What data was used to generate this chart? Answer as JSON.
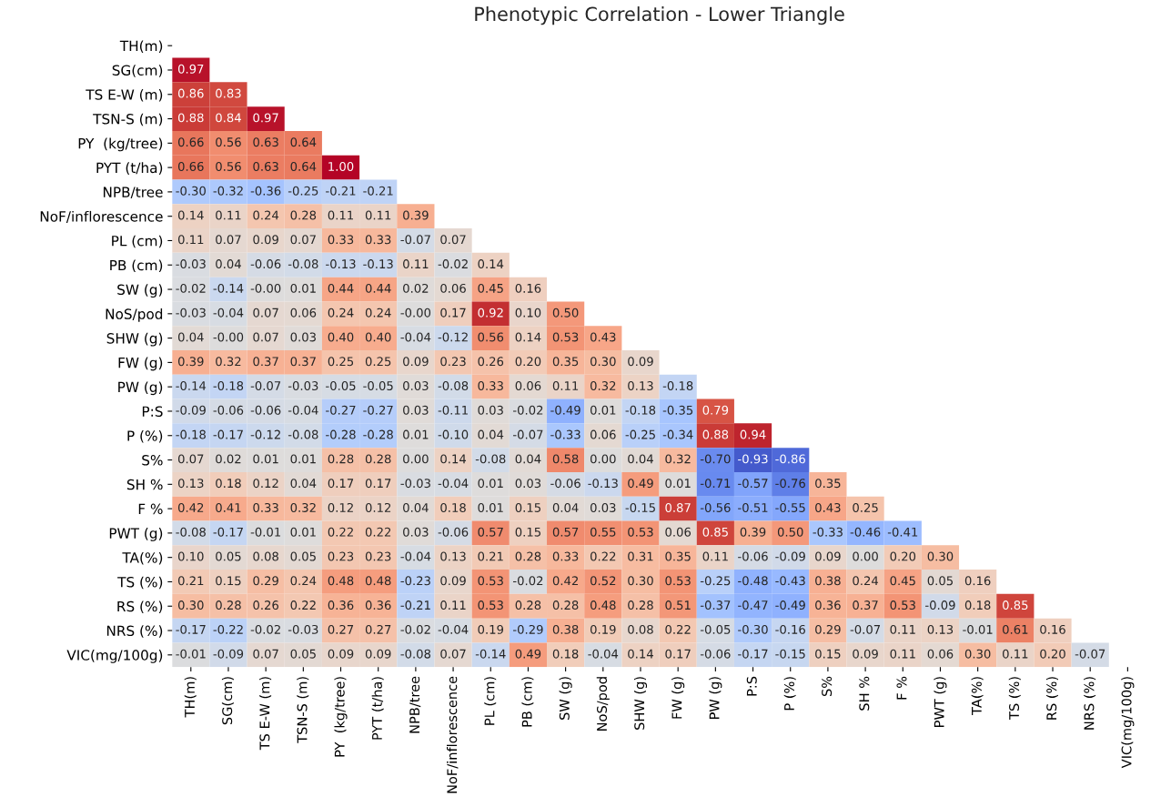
{
  "chart_data": {
    "type": "heatmap",
    "title": "Phenotypic Correlation - Lower Triangle",
    "grid": false,
    "data_labels": true,
    "categories": [
      "TH(m)",
      "SG(cm)",
      "TS E-W (m)",
      "TSN-S (m)",
      "PY  (kg/tree)",
      "PYT (t/ha)",
      "NPB/tree",
      "NoF/inflorescence",
      "PL (cm)",
      "PB (cm)",
      "SW (g)",
      "NoS/pod",
      "SHW (g)",
      "FW (g)",
      "PW (g)",
      "P:S",
      "P (%)",
      "S%",
      "SH %",
      "F %",
      "PWT (g)",
      "TA(%)",
      "TS (%)",
      "RS (%)",
      "NRS (%)",
      "VIC(mg/100g)"
    ],
    "y_categories": [
      "TH(m)",
      "SG(cm)",
      "TS E-W (m)",
      "TSN-S (m)",
      "PY  (kg/tree)",
      "PYT (t/ha)",
      "NPB/tree",
      "NoF/inflorescence",
      "PL (cm)",
      "PB (cm)",
      "SW (g)",
      "NoS/pod",
      "SHW (g)",
      "FW (g)",
      "PW (g)",
      "P:S",
      "P (%)",
      "S%",
      "SH %",
      "F %",
      "PWT (g)",
      "TA(%)",
      "TS (%)",
      "RS (%)",
      "NRS (%)",
      "VIC(mg/100g)"
    ],
    "cells": [
      [
        null,
        null,
        null,
        null,
        null,
        null,
        null,
        null,
        null,
        null,
        null,
        null,
        null,
        null,
        null,
        null,
        null,
        null,
        null,
        null,
        null,
        null,
        null,
        null,
        null,
        null
      ],
      [
        0.97,
        null,
        null,
        null,
        null,
        null,
        null,
        null,
        null,
        null,
        null,
        null,
        null,
        null,
        null,
        null,
        null,
        null,
        null,
        null,
        null,
        null,
        null,
        null,
        null,
        null
      ],
      [
        0.86,
        0.83,
        null,
        null,
        null,
        null,
        null,
        null,
        null,
        null,
        null,
        null,
        null,
        null,
        null,
        null,
        null,
        null,
        null,
        null,
        null,
        null,
        null,
        null,
        null,
        null
      ],
      [
        0.88,
        0.84,
        0.97,
        null,
        null,
        null,
        null,
        null,
        null,
        null,
        null,
        null,
        null,
        null,
        null,
        null,
        null,
        null,
        null,
        null,
        null,
        null,
        null,
        null,
        null,
        null
      ],
      [
        0.66,
        0.56,
        0.63,
        0.64,
        null,
        null,
        null,
        null,
        null,
        null,
        null,
        null,
        null,
        null,
        null,
        null,
        null,
        null,
        null,
        null,
        null,
        null,
        null,
        null,
        null,
        null
      ],
      [
        0.66,
        0.56,
        0.63,
        0.64,
        1.0,
        null,
        null,
        null,
        null,
        null,
        null,
        null,
        null,
        null,
        null,
        null,
        null,
        null,
        null,
        null,
        null,
        null,
        null,
        null,
        null,
        null
      ],
      [
        -0.3,
        -0.32,
        -0.36,
        -0.25,
        -0.21,
        -0.21,
        null,
        null,
        null,
        null,
        null,
        null,
        null,
        null,
        null,
        null,
        null,
        null,
        null,
        null,
        null,
        null,
        null,
        null,
        null,
        null
      ],
      [
        0.14,
        0.11,
        0.24,
        0.28,
        0.11,
        0.11,
        0.39,
        null,
        null,
        null,
        null,
        null,
        null,
        null,
        null,
        null,
        null,
        null,
        null,
        null,
        null,
        null,
        null,
        null,
        null,
        null
      ],
      [
        0.11,
        0.07,
        0.09,
        0.07,
        0.33,
        0.33,
        -0.07,
        0.07,
        null,
        null,
        null,
        null,
        null,
        null,
        null,
        null,
        null,
        null,
        null,
        null,
        null,
        null,
        null,
        null,
        null,
        null
      ],
      [
        -0.03,
        0.04,
        -0.06,
        -0.08,
        -0.13,
        -0.13,
        0.11,
        -0.02,
        0.14,
        null,
        null,
        null,
        null,
        null,
        null,
        null,
        null,
        null,
        null,
        null,
        null,
        null,
        null,
        null,
        null,
        null
      ],
      [
        -0.02,
        -0.14,
        -0.0,
        0.01,
        0.44,
        0.44,
        0.02,
        0.06,
        0.45,
        0.16,
        null,
        null,
        null,
        null,
        null,
        null,
        null,
        null,
        null,
        null,
        null,
        null,
        null,
        null,
        null,
        null
      ],
      [
        -0.03,
        -0.04,
        0.07,
        0.06,
        0.24,
        0.24,
        -0.0,
        0.17,
        0.92,
        0.1,
        0.5,
        null,
        null,
        null,
        null,
        null,
        null,
        null,
        null,
        null,
        null,
        null,
        null,
        null,
        null,
        null
      ],
      [
        0.04,
        -0.0,
        0.07,
        0.03,
        0.4,
        0.4,
        -0.04,
        -0.12,
        0.56,
        0.14,
        0.53,
        0.43,
        null,
        null,
        null,
        null,
        null,
        null,
        null,
        null,
        null,
        null,
        null,
        null,
        null,
        null
      ],
      [
        0.39,
        0.32,
        0.37,
        0.37,
        0.25,
        0.25,
        0.09,
        0.23,
        0.26,
        0.2,
        0.35,
        0.3,
        0.09,
        null,
        null,
        null,
        null,
        null,
        null,
        null,
        null,
        null,
        null,
        null,
        null,
        null
      ],
      [
        -0.14,
        -0.18,
        -0.07,
        -0.03,
        -0.05,
        -0.05,
        0.03,
        -0.08,
        0.33,
        0.06,
        0.11,
        0.32,
        0.13,
        -0.18,
        null,
        null,
        null,
        null,
        null,
        null,
        null,
        null,
        null,
        null,
        null,
        null
      ],
      [
        -0.09,
        -0.06,
        -0.06,
        -0.04,
        -0.27,
        -0.27,
        0.03,
        -0.11,
        0.03,
        -0.02,
        -0.49,
        0.01,
        -0.18,
        -0.35,
        0.79,
        null,
        null,
        null,
        null,
        null,
        null,
        null,
        null,
        null,
        null,
        null
      ],
      [
        -0.18,
        -0.17,
        -0.12,
        -0.08,
        -0.28,
        -0.28,
        0.01,
        -0.1,
        0.04,
        -0.07,
        -0.33,
        0.06,
        -0.25,
        -0.34,
        0.88,
        0.94,
        null,
        null,
        null,
        null,
        null,
        null,
        null,
        null,
        null,
        null
      ],
      [
        0.07,
        0.02,
        0.01,
        0.01,
        0.28,
        0.28,
        0.0,
        0.14,
        -0.08,
        0.04,
        0.58,
        0.0,
        0.04,
        0.32,
        -0.7,
        -0.93,
        -0.86,
        null,
        null,
        null,
        null,
        null,
        null,
        null,
        null,
        null
      ],
      [
        0.13,
        0.18,
        0.12,
        0.04,
        0.17,
        0.17,
        -0.03,
        -0.04,
        0.01,
        0.03,
        -0.06,
        -0.13,
        0.49,
        0.01,
        -0.71,
        -0.57,
        -0.76,
        0.35,
        null,
        null,
        null,
        null,
        null,
        null,
        null,
        null
      ],
      [
        0.42,
        0.41,
        0.33,
        0.32,
        0.12,
        0.12,
        0.04,
        0.18,
        0.01,
        0.15,
        0.04,
        0.03,
        -0.15,
        0.87,
        -0.56,
        -0.51,
        -0.55,
        0.43,
        0.25,
        null,
        null,
        null,
        null,
        null,
        null,
        null
      ],
      [
        -0.08,
        -0.17,
        -0.01,
        0.01,
        0.22,
        0.22,
        0.03,
        -0.06,
        0.57,
        0.15,
        0.57,
        0.55,
        0.53,
        0.06,
        0.85,
        0.39,
        0.5,
        -0.33,
        -0.46,
        -0.41,
        null,
        null,
        null,
        null,
        null,
        null
      ],
      [
        0.1,
        0.05,
        0.08,
        0.05,
        0.23,
        0.23,
        -0.04,
        0.13,
        0.21,
        0.28,
        0.33,
        0.22,
        0.31,
        0.35,
        0.11,
        -0.06,
        -0.09,
        0.09,
        0.0,
        0.2,
        0.3,
        null,
        null,
        null,
        null,
        null
      ],
      [
        0.21,
        0.15,
        0.29,
        0.24,
        0.48,
        0.48,
        -0.23,
        0.09,
        0.53,
        -0.02,
        0.42,
        0.52,
        0.3,
        0.53,
        -0.25,
        -0.48,
        -0.43,
        0.38,
        0.24,
        0.45,
        0.05,
        0.16,
        null,
        null,
        null,
        null
      ],
      [
        0.3,
        0.28,
        0.26,
        0.22,
        0.36,
        0.36,
        -0.21,
        0.11,
        0.53,
        0.28,
        0.28,
        0.48,
        0.28,
        0.51,
        -0.37,
        -0.47,
        -0.49,
        0.36,
        0.37,
        0.53,
        -0.09,
        0.18,
        0.85,
        null,
        null,
        null
      ],
      [
        -0.17,
        -0.22,
        -0.02,
        -0.03,
        0.27,
        0.27,
        -0.02,
        -0.04,
        0.19,
        -0.29,
        0.38,
        0.19,
        0.08,
        0.22,
        -0.05,
        -0.3,
        -0.16,
        0.29,
        -0.07,
        0.11,
        0.13,
        -0.01,
        0.61,
        0.16,
        null,
        null
      ],
      [
        -0.01,
        -0.09,
        0.07,
        0.05,
        0.09,
        0.09,
        -0.08,
        0.07,
        -0.14,
        0.49,
        0.18,
        -0.04,
        0.14,
        0.17,
        -0.06,
        -0.17,
        -0.15,
        0.15,
        0.09,
        0.11,
        0.06,
        0.3,
        0.11,
        0.2,
        -0.07,
        null
      ]
    ],
    "cell_labels": [
      [
        null,
        null,
        null,
        null,
        null,
        null,
        null,
        null,
        null,
        null,
        null,
        null,
        null,
        null,
        null,
        null,
        null,
        null,
        null,
        null,
        null,
        null,
        null,
        null,
        null,
        null
      ],
      [
        "0.97",
        null,
        null,
        null,
        null,
        null,
        null,
        null,
        null,
        null,
        null,
        null,
        null,
        null,
        null,
        null,
        null,
        null,
        null,
        null,
        null,
        null,
        null,
        null,
        null,
        null
      ],
      [
        "0.86",
        "0.83",
        null,
        null,
        null,
        null,
        null,
        null,
        null,
        null,
        null,
        null,
        null,
        null,
        null,
        null,
        null,
        null,
        null,
        null,
        null,
        null,
        null,
        null,
        null,
        null
      ],
      [
        "0.88",
        "0.84",
        "0.97",
        null,
        null,
        null,
        null,
        null,
        null,
        null,
        null,
        null,
        null,
        null,
        null,
        null,
        null,
        null,
        null,
        null,
        null,
        null,
        null,
        null,
        null,
        null
      ],
      [
        "0.66",
        "0.56",
        "0.63",
        "0.64",
        null,
        null,
        null,
        null,
        null,
        null,
        null,
        null,
        null,
        null,
        null,
        null,
        null,
        null,
        null,
        null,
        null,
        null,
        null,
        null,
        null,
        null
      ],
      [
        "0.66",
        "0.56",
        "0.63",
        "0.64",
        "1.00",
        null,
        null,
        null,
        null,
        null,
        null,
        null,
        null,
        null,
        null,
        null,
        null,
        null,
        null,
        null,
        null,
        null,
        null,
        null,
        null,
        null
      ],
      [
        "-0.30",
        "-0.32",
        "-0.36",
        "-0.25",
        "-0.21",
        "-0.21",
        null,
        null,
        null,
        null,
        null,
        null,
        null,
        null,
        null,
        null,
        null,
        null,
        null,
        null,
        null,
        null,
        null,
        null,
        null,
        null
      ],
      [
        "0.14",
        "0.11",
        "0.24",
        "0.28",
        "0.11",
        "0.11",
        "0.39",
        null,
        null,
        null,
        null,
        null,
        null,
        null,
        null,
        null,
        null,
        null,
        null,
        null,
        null,
        null,
        null,
        null,
        null,
        null
      ],
      [
        "0.11",
        "0.07",
        "0.09",
        "0.07",
        "0.33",
        "0.33",
        "-0.07",
        "0.07",
        null,
        null,
        null,
        null,
        null,
        null,
        null,
        null,
        null,
        null,
        null,
        null,
        null,
        null,
        null,
        null,
        null,
        null
      ],
      [
        "-0.03",
        "0.04",
        "-0.06",
        "-0.08",
        "-0.13",
        "-0.13",
        "0.11",
        "-0.02",
        "0.14",
        null,
        null,
        null,
        null,
        null,
        null,
        null,
        null,
        null,
        null,
        null,
        null,
        null,
        null,
        null,
        null,
        null
      ],
      [
        "-0.02",
        "-0.14",
        "-0.00",
        "0.01",
        "0.44",
        "0.44",
        "0.02",
        "0.06",
        "0.45",
        "0.16",
        null,
        null,
        null,
        null,
        null,
        null,
        null,
        null,
        null,
        null,
        null,
        null,
        null,
        null,
        null,
        null
      ],
      [
        "-0.03",
        "-0.04",
        "0.07",
        "0.06",
        "0.24",
        "0.24",
        "-0.00",
        "0.17",
        "0.92",
        "0.10",
        "0.50",
        null,
        null,
        null,
        null,
        null,
        null,
        null,
        null,
        null,
        null,
        null,
        null,
        null,
        null,
        null
      ],
      [
        "0.04",
        "-0.00",
        "0.07",
        "0.03",
        "0.40",
        "0.40",
        "-0.04",
        "-0.12",
        "0.56",
        "0.14",
        "0.53",
        "0.43",
        null,
        null,
        null,
        null,
        null,
        null,
        null,
        null,
        null,
        null,
        null,
        null,
        null,
        null
      ],
      [
        "0.39",
        "0.32",
        "0.37",
        "0.37",
        "0.25",
        "0.25",
        "0.09",
        "0.23",
        "0.26",
        "0.20",
        "0.35",
        "0.30",
        "0.09",
        null,
        null,
        null,
        null,
        null,
        null,
        null,
        null,
        null,
        null,
        null,
        null,
        null
      ],
      [
        "-0.14",
        "-0.18",
        "-0.07",
        "-0.03",
        "-0.05",
        "-0.05",
        "0.03",
        "-0.08",
        "0.33",
        "0.06",
        "0.11",
        "0.32",
        "0.13",
        "-0.18",
        null,
        null,
        null,
        null,
        null,
        null,
        null,
        null,
        null,
        null,
        null,
        null
      ],
      [
        "-0.09",
        "-0.06",
        "-0.06",
        "-0.04",
        "-0.27",
        "-0.27",
        "0.03",
        "-0.11",
        "0.03",
        "-0.02",
        "-0.49",
        "0.01",
        "-0.18",
        "-0.35",
        "0.79",
        null,
        null,
        null,
        null,
        null,
        null,
        null,
        null,
        null,
        null,
        null
      ],
      [
        "-0.18",
        "-0.17",
        "-0.12",
        "-0.08",
        "-0.28",
        "-0.28",
        "0.01",
        "-0.10",
        "0.04",
        "-0.07",
        "-0.33",
        "0.06",
        "-0.25",
        "-0.34",
        "0.88",
        "0.94",
        null,
        null,
        null,
        null,
        null,
        null,
        null,
        null,
        null,
        null
      ],
      [
        "0.07",
        "0.02",
        "0.01",
        "0.01",
        "0.28",
        "0.28",
        "0.00",
        "0.14",
        "-0.08",
        "0.04",
        "0.58",
        "0.00",
        "0.04",
        "0.32",
        "-0.70",
        "-0.93",
        "-0.86",
        null,
        null,
        null,
        null,
        null,
        null,
        null,
        null,
        null
      ],
      [
        "0.13",
        "0.18",
        "0.12",
        "0.04",
        "0.17",
        "0.17",
        "-0.03",
        "-0.04",
        "0.01",
        "0.03",
        "-0.06",
        "-0.13",
        "0.49",
        "0.01",
        "-0.71",
        "-0.57",
        "-0.76",
        "0.35",
        null,
        null,
        null,
        null,
        null,
        null,
        null,
        null
      ],
      [
        "0.42",
        "0.41",
        "0.33",
        "0.32",
        "0.12",
        "0.12",
        "0.04",
        "0.18",
        "0.01",
        "0.15",
        "0.04",
        "0.03",
        "-0.15",
        "0.87",
        "-0.56",
        "-0.51",
        "-0.55",
        "0.43",
        "0.25",
        null,
        null,
        null,
        null,
        null,
        null,
        null
      ],
      [
        "-0.08",
        "-0.17",
        "-0.01",
        "0.01",
        "0.22",
        "0.22",
        "0.03",
        "-0.06",
        "0.57",
        "0.15",
        "0.57",
        "0.55",
        "0.53",
        "0.06",
        "0.85",
        "0.39",
        "0.50",
        "-0.33",
        "-0.46",
        "-0.41",
        null,
        null,
        null,
        null,
        null,
        null
      ],
      [
        "0.10",
        "0.05",
        "0.08",
        "0.05",
        "0.23",
        "0.23",
        "-0.04",
        "0.13",
        "0.21",
        "0.28",
        "0.33",
        "0.22",
        "0.31",
        "0.35",
        "0.11",
        "-0.06",
        "-0.09",
        "0.09",
        "0.00",
        "0.20",
        "0.30",
        null,
        null,
        null,
        null,
        null
      ],
      [
        "0.21",
        "0.15",
        "0.29",
        "0.24",
        "0.48",
        "0.48",
        "-0.23",
        "0.09",
        "0.53",
        "-0.02",
        "0.42",
        "0.52",
        "0.30",
        "0.53",
        "-0.25",
        "-0.48",
        "-0.43",
        "0.38",
        "0.24",
        "0.45",
        "0.05",
        "0.16",
        null,
        null,
        null,
        null
      ],
      [
        "0.30",
        "0.28",
        "0.26",
        "0.22",
        "0.36",
        "0.36",
        "-0.21",
        "0.11",
        "0.53",
        "0.28",
        "0.28",
        "0.48",
        "0.28",
        "0.51",
        "-0.37",
        "-0.47",
        "-0.49",
        "0.36",
        "0.37",
        "0.53",
        "-0.09",
        "0.18",
        "0.85",
        null,
        null,
        null
      ],
      [
        "-0.17",
        "-0.22",
        "-0.02",
        "-0.03",
        "0.27",
        "0.27",
        "-0.02",
        "-0.04",
        "0.19",
        "-0.29",
        "0.38",
        "0.19",
        "0.08",
        "0.22",
        "-0.05",
        "-0.30",
        "-0.16",
        "0.29",
        "-0.07",
        "0.11",
        "0.13",
        "-0.01",
        "0.61",
        "0.16",
        null,
        null
      ],
      [
        "-0.01",
        "-0.09",
        "0.07",
        "0.05",
        "0.09",
        "0.09",
        "-0.08",
        "0.07",
        "-0.14",
        "0.49",
        "0.18",
        "-0.04",
        "0.14",
        "0.17",
        "-0.06",
        "-0.17",
        "-0.15",
        "0.15",
        "0.09",
        "0.11",
        "0.06",
        "0.30",
        "0.11",
        "0.20",
        "-0.07",
        null
      ]
    ]
  }
}
